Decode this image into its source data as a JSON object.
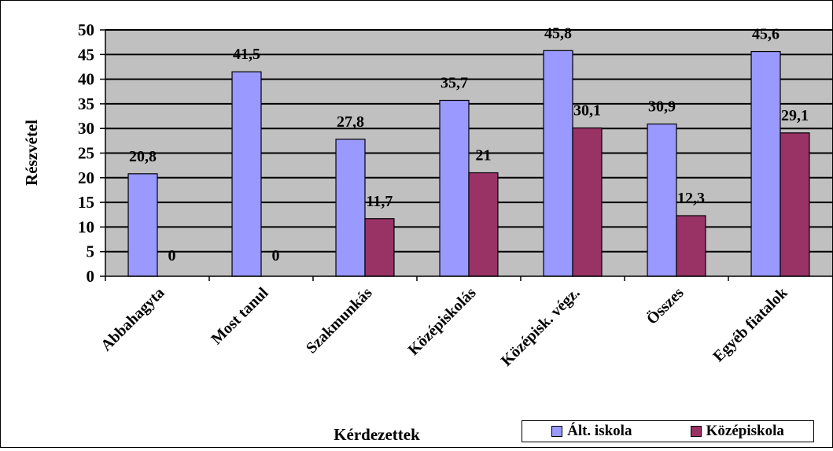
{
  "chart_data": {
    "type": "bar",
    "title": "",
    "xlabel": "Kérdezettek",
    "ylabel": "Részvétel",
    "ylim": [
      0,
      50
    ],
    "yticks": [
      0,
      5,
      10,
      15,
      20,
      25,
      30,
      35,
      40,
      45,
      50
    ],
    "grid": "horizontal",
    "legend_position": "bottom-right",
    "plot_background": "#c0c0c0",
    "categories": [
      "Abbahagyta",
      "Most tanul",
      "Szakmunkás",
      "Középiskolás",
      "Középisk. végz.",
      "Összes",
      "Egyéb fiatalok"
    ],
    "series": [
      {
        "name": "Ált. iskola",
        "color": "#9999ff",
        "values": [
          20.8,
          41.5,
          27.8,
          35.7,
          45.8,
          30.9,
          45.6
        ],
        "labels": [
          "20,8",
          "41,5",
          "27,8",
          "35,7",
          "45,8",
          "30,9",
          "45,6"
        ]
      },
      {
        "name": "Középiskola",
        "color": "#993366",
        "values": [
          0,
          0,
          11.7,
          21,
          30.1,
          12.3,
          29.1
        ],
        "labels": [
          "0",
          "0",
          "11,7",
          "21",
          "30,1",
          "12,3",
          "29,1"
        ]
      }
    ]
  }
}
